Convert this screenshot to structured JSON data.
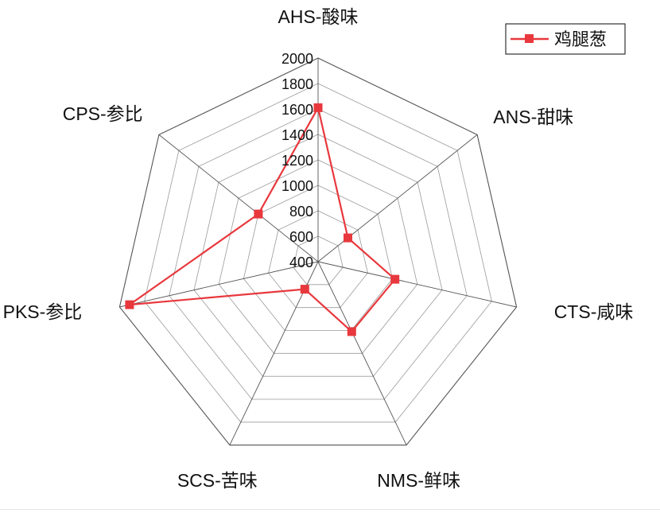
{
  "chart_data": {
    "type": "radar",
    "axes": [
      "AHS-酸味",
      "ANS-甜味",
      "CTS-咸味",
      "NMS-鲜味",
      "SCS-苦味",
      "PKS-参比",
      "CPS-参比"
    ],
    "rlim": [
      400,
      2000
    ],
    "ticks": [
      400,
      600,
      800,
      1000,
      1200,
      1400,
      1600,
      1800,
      2000
    ],
    "grid": true,
    "legend_position": "top-right",
    "series": [
      {
        "name": "鸡腿葱",
        "color": "#e8383d",
        "marker": "square",
        "values": [
          1610,
          700,
          1020,
          1010,
          640,
          1920,
          1000
        ]
      }
    ]
  }
}
